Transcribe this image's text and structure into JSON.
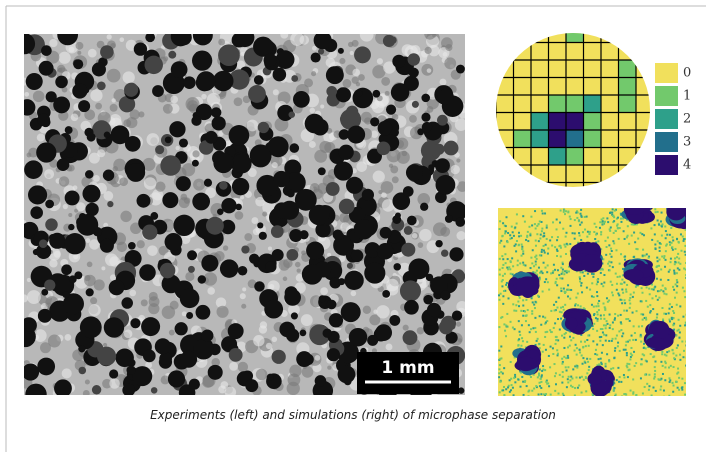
{
  "figure": {
    "scale_bar": "1 mm",
    "legend": [
      {
        "label": "0",
        "color": "#f1e05c"
      },
      {
        "label": "1",
        "color": "#72c96c"
      },
      {
        "label": "2",
        "color": "#2ea08a"
      },
      {
        "label": "3",
        "color": "#226f8c"
      },
      {
        "label": "4",
        "color": "#2c0d6e"
      }
    ],
    "caption": "Experiments (left) and simulations (right) of microphase separation"
  }
}
